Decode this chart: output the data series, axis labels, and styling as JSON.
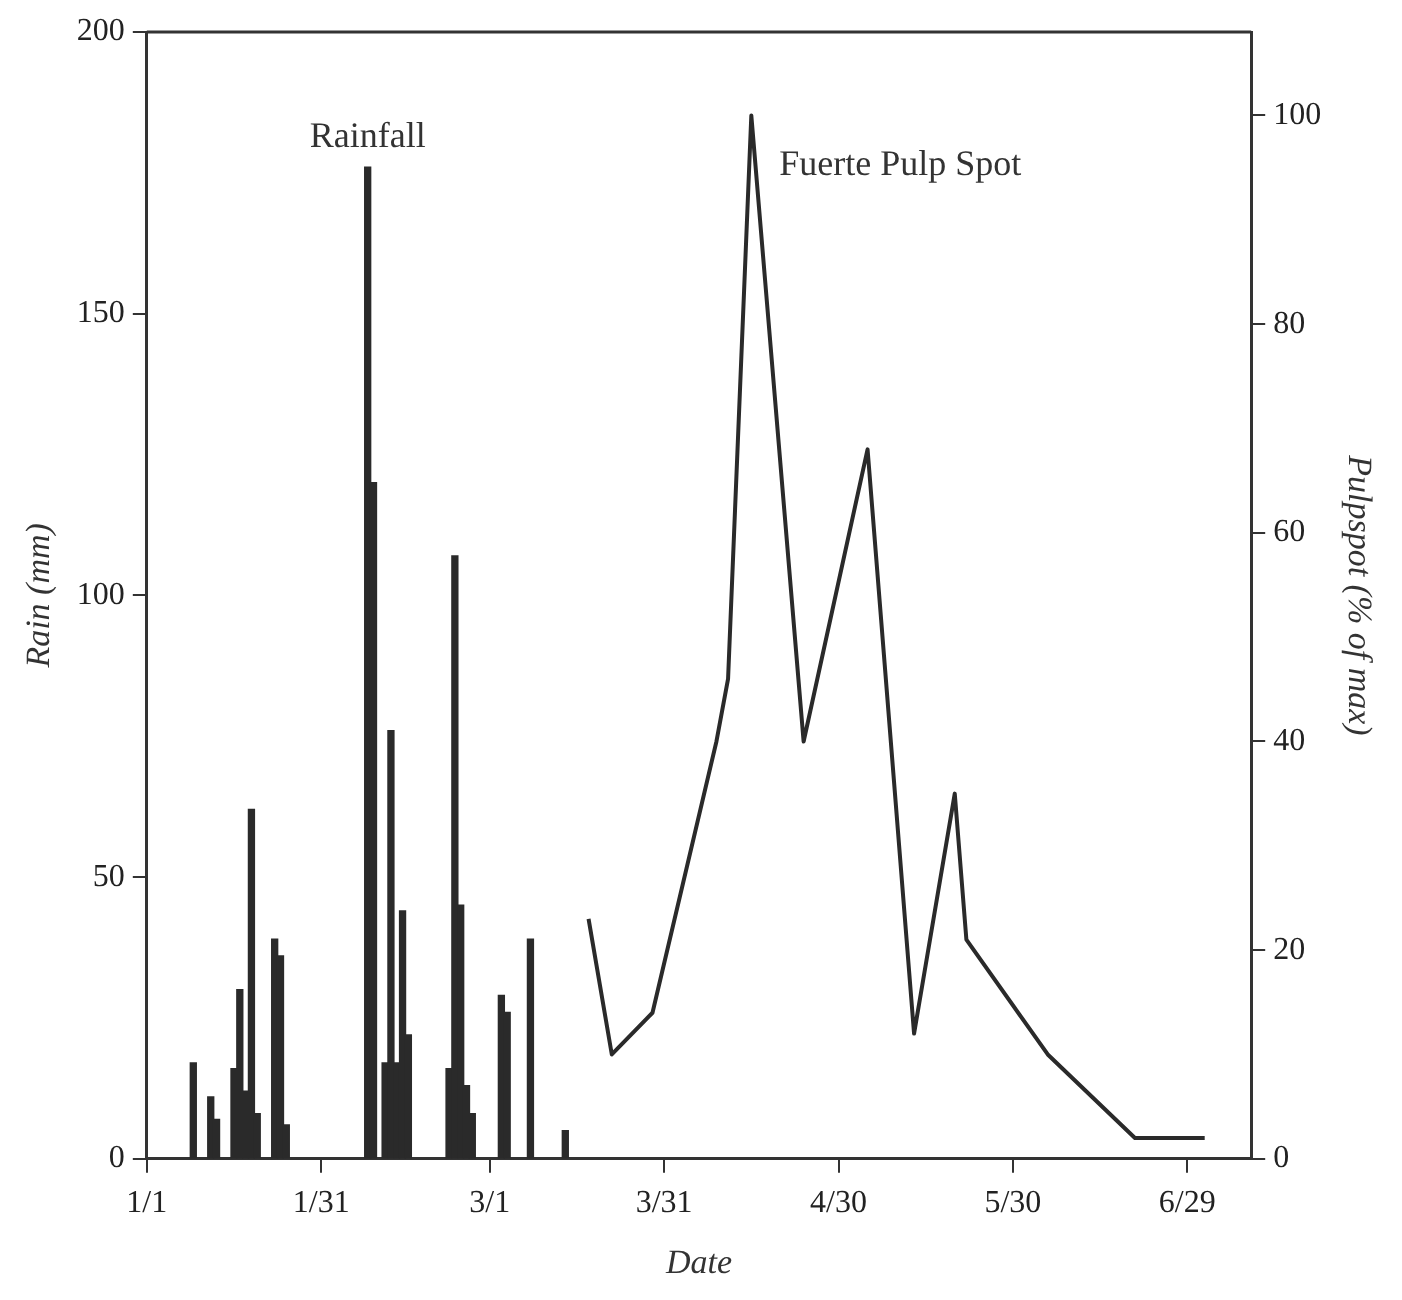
{
  "chart_data": {
    "type": "bar",
    "xlabel": "Date",
    "ylabel": "Rain (mm)",
    "y2label": "Pulpspot (% of max)",
    "xlim": [
      "--01-01",
      "--07-10"
    ],
    "xticks": [
      {
        "value": "--01-01",
        "label": "1/1"
      },
      {
        "value": "--01-31",
        "label": "1/31"
      },
      {
        "value": "--03-01",
        "label": "3/1"
      },
      {
        "value": "--03-31",
        "label": "3/31"
      },
      {
        "value": "--04-30",
        "label": "4/30"
      },
      {
        "value": "--05-30",
        "label": "5/30"
      },
      {
        "value": "--06-29",
        "label": "6/29"
      }
    ],
    "ylim": [
      0,
      200
    ],
    "yticks": [
      0,
      50,
      100,
      150,
      200
    ],
    "y2lim": [
      0,
      108
    ],
    "y2ticks": [
      0,
      20,
      40,
      60,
      80,
      100
    ],
    "grid": false,
    "legend": false,
    "marker": "none",
    "series": [
      {
        "name": "Rainfall",
        "color": "#2a2a2a",
        "x": [
          "--01-09",
          "--01-12",
          "--01-13",
          "--01-16",
          "--01-17",
          "--01-18",
          "--01-19",
          "--01-20",
          "--01-23",
          "--01-24",
          "--01-25",
          "--02-08",
          "--02-09",
          "--02-11",
          "--02-12",
          "--02-13",
          "--02-14",
          "--02-15",
          "--02-22",
          "--02-23",
          "--02-24",
          "--02-25",
          "--02-26",
          "--03-03",
          "--03-04",
          "--03-08",
          "--03-14"
        ],
        "values": [
          17,
          11,
          7,
          16,
          30,
          12,
          62,
          8,
          39,
          36,
          6,
          176,
          120,
          17,
          76,
          17,
          44,
          22,
          16,
          107,
          45,
          13,
          8,
          29,
          26,
          39,
          5
        ]
      },
      {
        "name": "Fuerte Pulp Spot",
        "type": "line",
        "axis": "y2",
        "color": "#2a2a2a",
        "x": [
          "--03-18",
          "--03-22",
          "--03-29",
          "--04-09",
          "--04-11",
          "--04-15",
          "--04-24",
          "--05-05",
          "--05-13",
          "--05-20",
          "--05-22",
          "--06-05",
          "--06-20",
          "--07-02"
        ],
        "values": [
          23,
          10,
          14,
          40,
          46,
          100,
          40,
          68,
          12,
          35,
          21,
          10,
          2,
          2
        ]
      }
    ]
  }
}
